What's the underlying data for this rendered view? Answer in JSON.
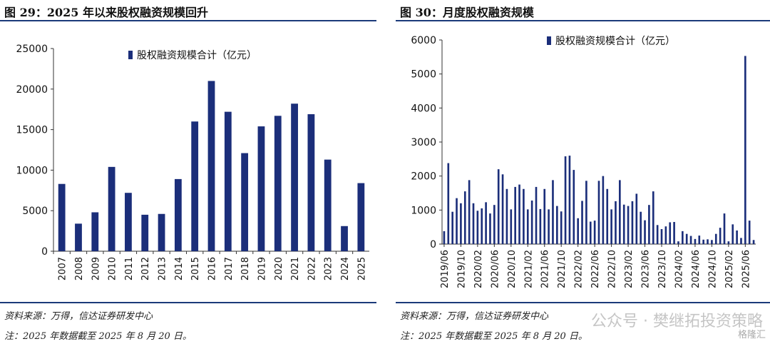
{
  "colors": {
    "bar": "#1b2e7a",
    "rule": "#1b3a7a",
    "axis": "#333333"
  },
  "left": {
    "title": "图 29：2025 年以来股权融资规模回升",
    "source": "资料来源：万得，信达证券研发中心",
    "footnote": "注：2025 年数据截至 2025 年 8 月 20 日。"
  },
  "right": {
    "title": "图 30：月度股权融资规模",
    "source": "资料来源：万得，信达证券研发中心",
    "footnote": "注：2025 年数据截至 2025 年 8 月 20 日。"
  },
  "watermark": {
    "text": "公众号 · 樊继拓投资策略",
    "logo": "格隆汇"
  },
  "chart_data": [
    {
      "type": "bar",
      "legend": "股权融资规模合计（亿元）",
      "legend_position": "top-center",
      "categories": [
        "2007",
        "2008",
        "2009",
        "2010",
        "2011",
        "2012",
        "2013",
        "2014",
        "2015",
        "2016",
        "2017",
        "2018",
        "2019",
        "2020",
        "2021",
        "2022",
        "2023",
        "2024",
        "2025"
      ],
      "values": [
        8300,
        3400,
        4800,
        10400,
        7200,
        4500,
        4600,
        8900,
        16000,
        21000,
        17200,
        12100,
        15400,
        16700,
        18200,
        16900,
        11300,
        3100,
        8400
      ],
      "ylim": [
        0,
        25000
      ],
      "yticks": [
        "0",
        "5000",
        "10000",
        "15000",
        "20000",
        "25000"
      ],
      "grid": false
    },
    {
      "type": "bar",
      "legend": "股权融资规模合计（亿元）",
      "legend_position": "top-center",
      "x_start": "2019/06",
      "ticklabels": [
        "2019/06",
        "2019/10",
        "2020/02",
        "2020/06",
        "2020/10",
        "2021/02",
        "2021/06",
        "2021/10",
        "2022/02",
        "2022/06",
        "2022/10",
        "2023/02",
        "2023/06",
        "2023/10",
        "2024/02",
        "2024/06",
        "2024/10",
        "2025/02",
        "2025/06"
      ],
      "values": [
        380,
        2380,
        950,
        1350,
        1200,
        1550,
        1880,
        1200,
        980,
        1050,
        1230,
        900,
        1150,
        2200,
        2050,
        1620,
        1020,
        1680,
        1750,
        1620,
        1020,
        1280,
        1680,
        1030,
        1620,
        1020,
        1880,
        1120,
        960,
        2580,
        2600,
        2180,
        760,
        1270,
        1860,
        660,
        690,
        1860,
        2000,
        1620,
        1020,
        1260,
        1880,
        1160,
        1120,
        1260,
        1480,
        950,
        700,
        1150,
        1550,
        560,
        440,
        520,
        640,
        650,
        80,
        380,
        300,
        240,
        150,
        250,
        130,
        140,
        120,
        300,
        480,
        900,
        80,
        580,
        400,
        180,
        5530,
        690,
        120
      ],
      "ylim": [
        0,
        6000
      ],
      "yticks": [
        "0",
        "1000",
        "2000",
        "3000",
        "4000",
        "5000",
        "6000"
      ],
      "grid": false
    }
  ]
}
